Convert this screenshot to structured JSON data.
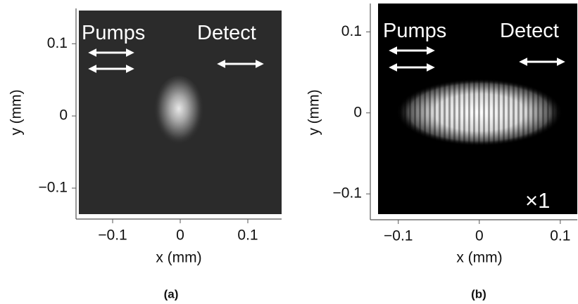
{
  "chart_data": [
    {
      "type": "image",
      "caption": "(a)",
      "xlabel": "x (mm)",
      "ylabel": "y (mm)",
      "annotations": [
        "Pumps",
        "Detect"
      ],
      "xlim": [
        -0.15,
        0.15
      ],
      "ylim": [
        -0.136,
        0.146
      ],
      "xticks": [
        {
          "value": -0.1,
          "label": "−0.1"
        },
        0,
        0.1
      ],
      "yticks": [
        {
          "value": -0.1,
          "label": "−0.1"
        },
        0,
        0.1
      ]
    },
    {
      "type": "image",
      "caption": "(b)",
      "xlabel": "x (mm)",
      "ylabel": "y (mm)",
      "annotations": [
        "Pumps",
        "Detect",
        "×1"
      ],
      "xlim": [
        -0.125,
        0.121
      ],
      "ylim": [
        -0.125,
        0.135
      ],
      "xticks": [
        {
          "value": -0.1,
          "label": "−0.1"
        },
        0,
        0.1
      ],
      "yticks": [
        {
          "value": -0.1,
          "label": "−0.1"
        },
        0,
        0.1
      ]
    }
  ]
}
